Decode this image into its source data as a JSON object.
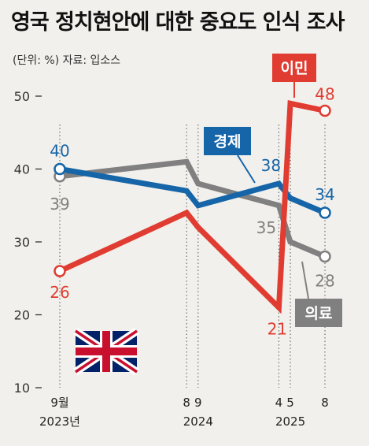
{
  "title": "영국 정치현안에 대한 중요도 인식 조사",
  "subtitle": "(단위: %) 자료: 입소스",
  "chart_data": {
    "type": "line",
    "title": "영국 정치현안에 대한 중요도 인식 조사",
    "unit": "%",
    "source": "입소스",
    "ylim": [
      10,
      50
    ],
    "y_ticks": [
      10,
      20,
      30,
      40,
      50
    ],
    "x_ticks": [
      {
        "label": "9월",
        "sublabel": "2023년",
        "x": "2023-09"
      },
      {
        "label": "8",
        "sublabel": "",
        "x": "2024-08"
      },
      {
        "label": "9",
        "sublabel": "2024",
        "x": "2024-09"
      },
      {
        "label": "4",
        "sublabel": "",
        "x": "2025-04"
      },
      {
        "label": "5",
        "sublabel": "2025",
        "x": "2025-05"
      },
      {
        "label": "8",
        "sublabel": "",
        "x": "2025-08"
      }
    ],
    "grid": false,
    "series": [
      {
        "name": "이민",
        "color": "#e03c31",
        "points": [
          {
            "x": "2023-09",
            "y": 26
          },
          {
            "x": "2024-08",
            "y": 34
          },
          {
            "x": "2024-09",
            "y": 32
          },
          {
            "x": "2025-04",
            "y": 21
          },
          {
            "x": "2025-05",
            "y": 49
          },
          {
            "x": "2025-08",
            "y": 48
          }
        ],
        "labels": [
          {
            "x": "2023-09",
            "text": "26"
          },
          {
            "x": "2025-04",
            "text": "21"
          },
          {
            "x": "2025-08",
            "text": "48"
          }
        ]
      },
      {
        "name": "경제",
        "color": "#1565a8",
        "points": [
          {
            "x": "2023-09",
            "y": 40
          },
          {
            "x": "2024-08",
            "y": 37
          },
          {
            "x": "2024-09",
            "y": 35
          },
          {
            "x": "2025-04",
            "y": 38
          },
          {
            "x": "2025-05",
            "y": 36
          },
          {
            "x": "2025-08",
            "y": 34
          }
        ],
        "labels": [
          {
            "x": "2023-09",
            "text": "40"
          },
          {
            "x": "2025-04",
            "text": "38"
          },
          {
            "x": "2025-08",
            "text": "34"
          }
        ]
      },
      {
        "name": "의료",
        "color": "#808080",
        "points": [
          {
            "x": "2023-09",
            "y": 39
          },
          {
            "x": "2024-08",
            "y": 41
          },
          {
            "x": "2024-09",
            "y": 38
          },
          {
            "x": "2025-04",
            "y": 35
          },
          {
            "x": "2025-05",
            "y": 30
          },
          {
            "x": "2025-08",
            "y": 28
          }
        ],
        "labels": [
          {
            "x": "2023-09",
            "text": "39"
          },
          {
            "x": "2025-04",
            "text": "35"
          },
          {
            "x": "2025-08",
            "text": "28"
          }
        ]
      }
    ],
    "flag_icon": "uk-flag-icon"
  }
}
